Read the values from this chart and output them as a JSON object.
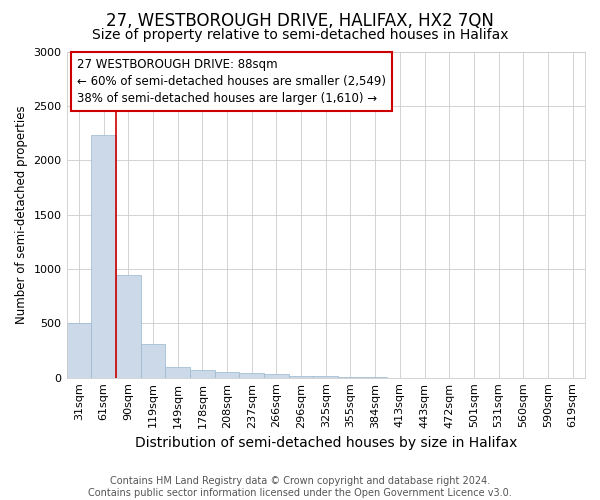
{
  "title1": "27, WESTBOROUGH DRIVE, HALIFAX, HX2 7QN",
  "title2": "Size of property relative to semi-detached houses in Halifax",
  "xlabel": "Distribution of semi-detached houses by size in Halifax",
  "ylabel": "Number of semi-detached properties",
  "footnote": "Contains HM Land Registry data © Crown copyright and database right 2024.\nContains public sector information licensed under the Open Government Licence v3.0.",
  "annotation_line1": "27 WESTBOROUGH DRIVE: 88sqm",
  "annotation_line2": "← 60% of semi-detached houses are smaller (2,549)",
  "annotation_line3": "38% of semi-detached houses are larger (1,610) →",
  "categories": [
    "31sqm",
    "61sqm",
    "90sqm",
    "119sqm",
    "149sqm",
    "178sqm",
    "208sqm",
    "237sqm",
    "266sqm",
    "296sqm",
    "325sqm",
    "355sqm",
    "384sqm",
    "413sqm",
    "443sqm",
    "472sqm",
    "501sqm",
    "531sqm",
    "560sqm",
    "590sqm",
    "619sqm"
  ],
  "values": [
    500,
    2230,
    940,
    310,
    100,
    75,
    55,
    40,
    30,
    20,
    12,
    8,
    5,
    0,
    0,
    0,
    0,
    0,
    0,
    0,
    0
  ],
  "bar_color": "#ccd9e8",
  "bar_edge_color": "#9ab8d0",
  "vline_color": "#cc0000",
  "vline_position": 1.5,
  "annotation_box_color": "#ffffff",
  "annotation_box_edge": "#cc0000",
  "ylim": [
    0,
    3000
  ],
  "yticks": [
    0,
    500,
    1000,
    1500,
    2000,
    2500,
    3000
  ],
  "grid_color": "#cccccc",
  "title1_fontsize": 12,
  "title2_fontsize": 10,
  "xlabel_fontsize": 10,
  "ylabel_fontsize": 8.5,
  "tick_fontsize": 8,
  "annotation_fontsize": 8.5,
  "footnote_fontsize": 7
}
